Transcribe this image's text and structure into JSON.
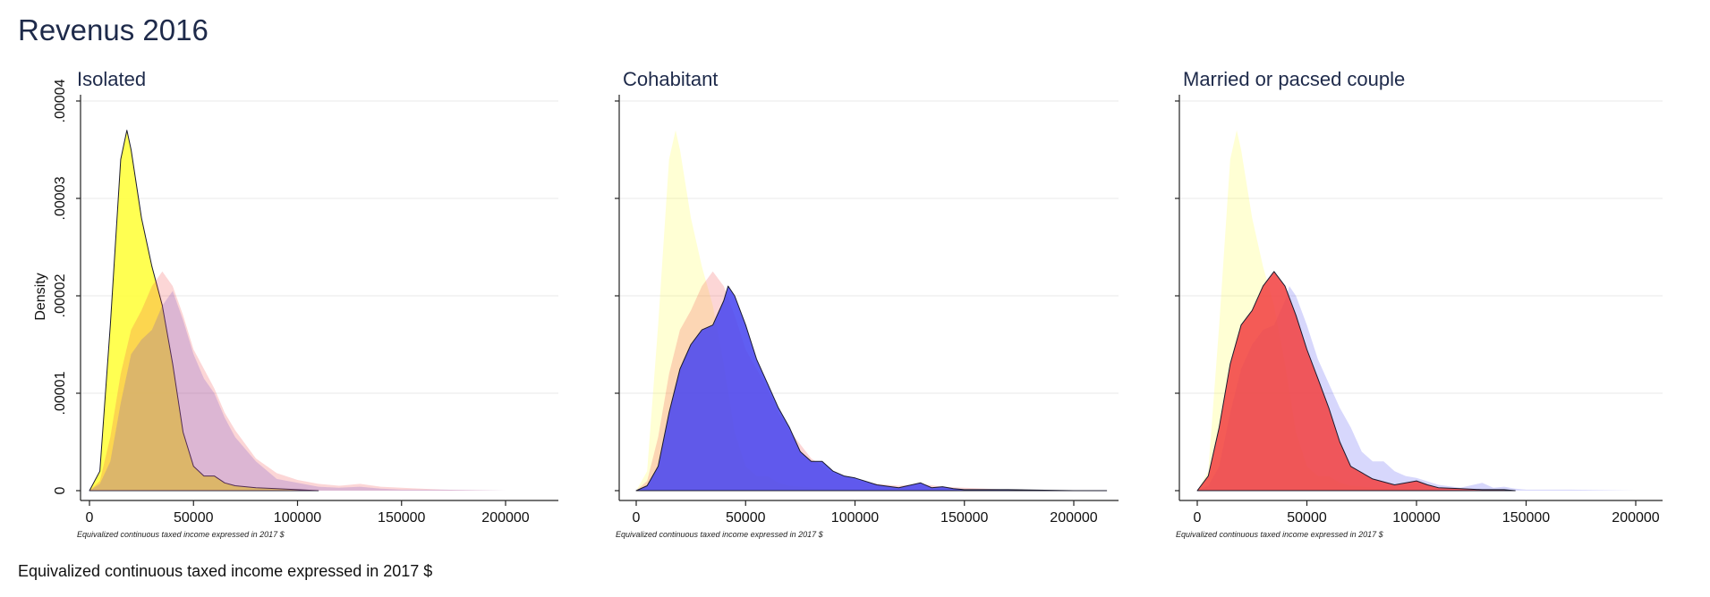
{
  "figure": {
    "title": "Revenus 2016",
    "ylabel": "Density",
    "bottom_note": "Equivalized continuous taxed income expressed in 2017 $"
  },
  "colors": {
    "isolated": "#ffff3a",
    "cohabitant": "#4a48f0",
    "married": "#f24444",
    "title": "#1e2a4a"
  },
  "chart_data": [
    {
      "type": "area",
      "title": "Isolated",
      "xlabel": "Equivalized continuous taxed income expressed in 2017 $",
      "ylabel": "Density",
      "xlim": [
        0,
        200000
      ],
      "ylim": [
        0,
        4e-05
      ],
      "xticks": [
        "0",
        "50000",
        "100000",
        "150000",
        "200000"
      ],
      "yticks": [
        "0",
        ".00001",
        ".00002",
        ".00003",
        ".00004"
      ],
      "grid": true,
      "highlight": "Isolated",
      "series": [
        {
          "name": "Isolated",
          "color": "#ffff3a",
          "x": [
            0,
            5000,
            10000,
            15000,
            18000,
            20000,
            25000,
            30000,
            35000,
            40000,
            45000,
            50000,
            55000,
            60000,
            65000,
            70000,
            80000,
            90000,
            100000,
            110000
          ],
          "y": [
            0,
            2e-06,
            1.7e-05,
            3.4e-05,
            3.7e-05,
            3.5e-05,
            2.8e-05,
            2.3e-05,
            1.9e-05,
            1.3e-05,
            6e-06,
            2.5e-06,
            1.5e-06,
            1.5e-06,
            8e-07,
            5e-07,
            3e-07,
            2e-07,
            1e-07,
            0
          ]
        },
        {
          "name": "Cohabitant",
          "color": "#4a48f0",
          "x": [
            0,
            5000,
            10000,
            15000,
            20000,
            25000,
            30000,
            35000,
            40000,
            45000,
            50000,
            55000,
            60000,
            65000,
            70000,
            80000,
            90000,
            100000,
            110000,
            120000,
            130000,
            140000,
            150000,
            170000,
            200000
          ],
          "y": [
            0,
            7e-07,
            3e-06,
            9e-06,
            1.4e-05,
            1.55e-05,
            1.65e-05,
            1.9e-05,
            2.05e-05,
            1.75e-05,
            1.4e-05,
            1.15e-05,
            1e-05,
            7.5e-06,
            5.5e-06,
            3e-06,
            1.2e-06,
            8e-07,
            4e-07,
            3e-07,
            4e-07,
            2e-07,
            1e-07,
            1e-07,
            0
          ]
        },
        {
          "name": "Married or pacsed couple",
          "color": "#f24444",
          "x": [
            0,
            5000,
            10000,
            15000,
            20000,
            25000,
            30000,
            35000,
            40000,
            45000,
            50000,
            55000,
            60000,
            65000,
            70000,
            80000,
            90000,
            100000,
            110000,
            120000,
            130000,
            140000,
            150000,
            170000,
            200000
          ],
          "y": [
            0,
            1e-06,
            5.5e-06,
            1.2e-05,
            1.65e-05,
            1.85e-05,
            2.1e-05,
            2.25e-05,
            2.1e-05,
            1.8e-05,
            1.45e-05,
            1.25e-05,
            1.05e-05,
            8e-06,
            6.2e-06,
            3.3e-06,
            1.8e-06,
            1.1e-06,
            7e-07,
            5e-07,
            7e-07,
            4e-07,
            3e-07,
            1e-07,
            0
          ]
        }
      ]
    },
    {
      "type": "area",
      "title": "Cohabitant",
      "xlabel": "Equivalized continuous taxed income expressed in 2017 $",
      "ylabel": "",
      "xlim": [
        0,
        200000
      ],
      "ylim": [
        0,
        4e-05
      ],
      "xticks": [
        "0",
        "50000",
        "100000",
        "150000",
        "200000"
      ],
      "yticks": [
        "",
        "",
        "",
        "",
        ""
      ],
      "grid": true,
      "highlight": "Cohabitant",
      "series": [
        {
          "name": "Isolated",
          "color": "#ffff3a",
          "x": [
            0,
            5000,
            10000,
            15000,
            18000,
            20000,
            25000,
            30000,
            35000,
            40000,
            45000,
            50000,
            55000,
            60000,
            65000,
            70000,
            80000,
            90000,
            100000,
            110000
          ],
          "y": [
            0,
            2e-06,
            1.7e-05,
            3.4e-05,
            3.7e-05,
            3.5e-05,
            2.8e-05,
            2.3e-05,
            1.9e-05,
            1.3e-05,
            6e-06,
            2.5e-06,
            1.5e-06,
            1.5e-06,
            8e-07,
            5e-07,
            3e-07,
            2e-07,
            1e-07,
            0
          ]
        },
        {
          "name": "Married or pacsed couple",
          "color": "#f24444",
          "x": [
            0,
            5000,
            10000,
            15000,
            20000,
            25000,
            30000,
            35000,
            40000,
            45000,
            50000,
            55000,
            60000,
            65000,
            70000,
            80000,
            90000,
            100000,
            110000,
            120000,
            130000,
            140000,
            150000,
            170000,
            200000
          ],
          "y": [
            0,
            1e-06,
            5.5e-06,
            1.2e-05,
            1.65e-05,
            1.85e-05,
            2.1e-05,
            2.25e-05,
            2.1e-05,
            1.8e-05,
            1.45e-05,
            1.25e-05,
            1.05e-05,
            8e-06,
            6.2e-06,
            3.3e-06,
            1.8e-06,
            1.1e-06,
            7e-07,
            5e-07,
            7e-07,
            4e-07,
            3e-07,
            1e-07,
            0
          ]
        },
        {
          "name": "Cohabitant",
          "color": "#4a48f0",
          "x": [
            0,
            5000,
            10000,
            15000,
            20000,
            25000,
            30000,
            35000,
            40000,
            42000,
            45000,
            50000,
            55000,
            60000,
            65000,
            70000,
            75000,
            80000,
            85000,
            90000,
            95000,
            100000,
            110000,
            120000,
            130000,
            135000,
            140000,
            145000,
            150000,
            170000,
            200000,
            215000
          ],
          "y": [
            0,
            5e-07,
            2.5e-06,
            8e-06,
            1.25e-05,
            1.5e-05,
            1.65e-05,
            1.7e-05,
            1.95e-05,
            2.1e-05,
            2e-05,
            1.7e-05,
            1.35e-05,
            1.1e-05,
            8.5e-06,
            6.5e-06,
            4e-06,
            3e-06,
            3e-06,
            2e-06,
            1.5e-06,
            1.3e-06,
            6e-07,
            3e-07,
            8e-07,
            3e-07,
            4e-07,
            2e-07,
            1e-07,
            1e-07,
            0,
            0
          ]
        }
      ]
    },
    {
      "type": "area",
      "title": "Married or pacsed couple",
      "xlabel": "Equivalized continuous taxed income expressed in 2017 $",
      "ylabel": "",
      "xlim": [
        0,
        200000
      ],
      "ylim": [
        0,
        4e-05
      ],
      "xticks": [
        "0",
        "50000",
        "100000",
        "150000",
        "200000"
      ],
      "yticks": [
        "",
        "",
        "",
        "",
        ""
      ],
      "grid": true,
      "highlight": "Married or pacsed couple",
      "series": [
        {
          "name": "Isolated",
          "color": "#ffff3a",
          "x": [
            0,
            5000,
            10000,
            15000,
            18000,
            20000,
            25000,
            30000,
            35000,
            40000,
            45000,
            50000,
            55000,
            60000,
            65000,
            70000,
            80000,
            90000,
            100000,
            110000
          ],
          "y": [
            0,
            2e-06,
            1.7e-05,
            3.4e-05,
            3.7e-05,
            3.5e-05,
            2.8e-05,
            2.3e-05,
            1.9e-05,
            1.3e-05,
            6e-06,
            2.5e-06,
            1.5e-06,
            1.5e-06,
            8e-07,
            5e-07,
            3e-07,
            2e-07,
            1e-07,
            0
          ]
        },
        {
          "name": "Cohabitant",
          "color": "#4a48f0",
          "x": [
            0,
            5000,
            10000,
            15000,
            20000,
            25000,
            30000,
            35000,
            40000,
            42000,
            45000,
            50000,
            55000,
            60000,
            65000,
            70000,
            75000,
            80000,
            85000,
            90000,
            95000,
            100000,
            110000,
            120000,
            130000,
            135000,
            140000,
            145000,
            150000,
            170000,
            200000
          ],
          "y": [
            0,
            5e-07,
            2.5e-06,
            8e-06,
            1.25e-05,
            1.5e-05,
            1.65e-05,
            1.7e-05,
            1.95e-05,
            2.1e-05,
            2e-05,
            1.7e-05,
            1.35e-05,
            1.1e-05,
            8.5e-06,
            6.5e-06,
            4e-06,
            3e-06,
            3e-06,
            2e-06,
            1.5e-06,
            1.3e-06,
            6e-07,
            3e-07,
            8e-07,
            3e-07,
            4e-07,
            2e-07,
            1e-07,
            1e-07,
            0
          ]
        },
        {
          "name": "Married or pacsed couple",
          "color": "#f24444",
          "x": [
            0,
            5000,
            10000,
            15000,
            20000,
            25000,
            30000,
            35000,
            40000,
            45000,
            50000,
            55000,
            60000,
            65000,
            70000,
            80000,
            90000,
            100000,
            105000,
            110000,
            120000,
            130000,
            140000,
            145000
          ],
          "y": [
            0,
            1.5e-06,
            6.5e-06,
            1.3e-05,
            1.7e-05,
            1.85e-05,
            2.1e-05,
            2.25e-05,
            2.1e-05,
            1.8e-05,
            1.45e-05,
            1.15e-05,
            8.5e-06,
            5e-06,
            2.5e-06,
            1.2e-06,
            6e-07,
            1e-06,
            6e-07,
            3e-07,
            2e-07,
            1e-07,
            1e-07,
            0
          ]
        }
      ]
    }
  ]
}
